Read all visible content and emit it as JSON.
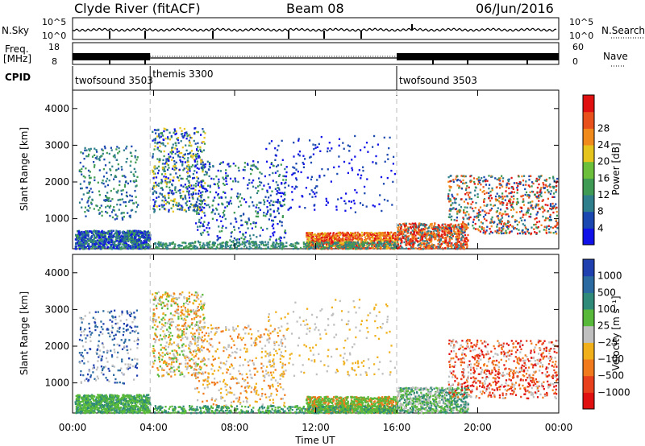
{
  "header": {
    "station": "Clyde River (fitACF)",
    "beam": "Beam 08",
    "date": "06/Jun/2016"
  },
  "summary_panels": {
    "sky_label": "N.Sky",
    "search_label": "N.Search",
    "freq_label_1": "Freq.",
    "freq_label_2": "[MHz]",
    "nave_label": "Nave",
    "cpid_label": "CPID",
    "sky_ticks": [
      "10^5",
      "10^0"
    ],
    "search_ticks": [
      "10^5",
      "10^0"
    ],
    "freq_ticks": [
      "18",
      "8"
    ],
    "nave_ticks": [
      "60",
      "0"
    ]
  },
  "cpid": {
    "segments": [
      {
        "start": 0,
        "end": 3.83,
        "label": "twofsound 3503"
      },
      {
        "start": 3.83,
        "end": 16.0,
        "label": "themis 3300"
      },
      {
        "start": 16.0,
        "end": 24,
        "label": "twofsound 3503"
      }
    ]
  },
  "chart_data": [
    {
      "type": "heatmap",
      "name": "power",
      "ylabel": "Slant Range [km]",
      "xlabel": "Time UT",
      "xlim": [
        0,
        24
      ],
      "ylim": [
        180,
        4500
      ],
      "x_ticks": [
        "00:00",
        "04:00",
        "08:00",
        "12:00",
        "16:00",
        "20:00",
        "00:00"
      ],
      "y_ticks": [
        "1000",
        "2000",
        "3000",
        "4000"
      ],
      "y_tick_values": [
        1000,
        2000,
        3000,
        4000
      ],
      "colorbar": {
        "label": "Power [dB]",
        "ticks": [
          "4",
          "8",
          "12",
          "16",
          "20",
          "24",
          "28"
        ],
        "colors": [
          "#1010e8",
          "#1a48b0",
          "#2f7e8c",
          "#3f9a54",
          "#6cbf3a",
          "#e6c41e",
          "#f08a1c",
          "#e8501c",
          "#e01010"
        ]
      }
    },
    {
      "type": "heatmap",
      "name": "velocity",
      "ylabel": "Slant Range [km]",
      "xlabel": "Time UT",
      "xlim": [
        0,
        24
      ],
      "ylim": [
        180,
        4500
      ],
      "x_ticks": [
        "00:00",
        "04:00",
        "08:00",
        "12:00",
        "16:00",
        "20:00",
        "00:00"
      ],
      "y_ticks": [
        "1000",
        "2000",
        "3000",
        "4000"
      ],
      "y_tick_values": [
        1000,
        2000,
        3000,
        4000
      ],
      "colorbar": {
        "label": "Velocity [m s⁻¹]",
        "ticks": [
          "1000",
          "500",
          "100",
          "25",
          "−25",
          "−100",
          "−500",
          "−1000"
        ],
        "colors": [
          "#2140b0",
          "#2a6aa0",
          "#2f8a7a",
          "#58b83a",
          "#bfbfbf",
          "#f0b01c",
          "#f07a1c",
          "#e8401c",
          "#e01010"
        ]
      }
    }
  ],
  "x_axis_label": "Time UT",
  "boundary_times": [
    3.83,
    16.0
  ]
}
